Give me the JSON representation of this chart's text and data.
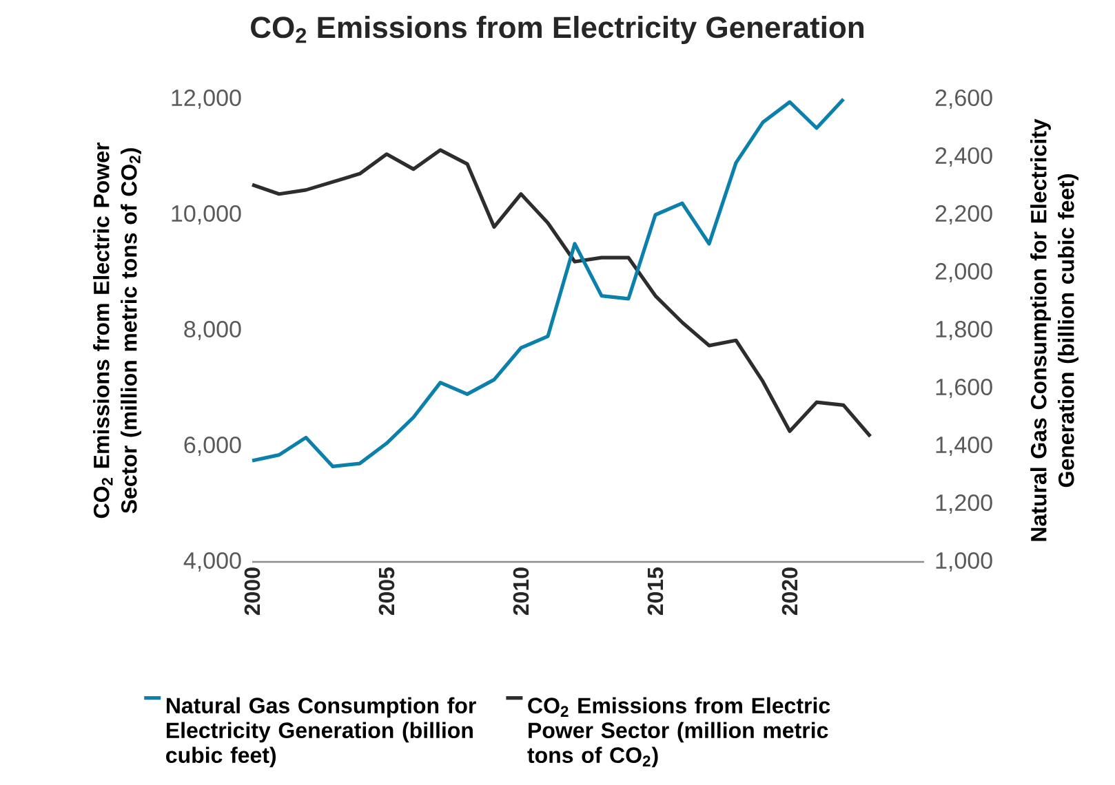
{
  "chart_data": {
    "type": "line",
    "title": "CO$_{2}$ Emissions from Electricity Generation",
    "ylabel": "CO$_{2}$ Emissions from Electric Power Sector (million metric tons of CO$_{2}$)",
    "y2label": "Natural Gas Consumption for Electricity Generation (billion cubic feet)",
    "x": [
      2000,
      2001,
      2002,
      2003,
      2004,
      2005,
      2006,
      2007,
      2008,
      2009,
      2010,
      2011,
      2012,
      2013,
      2014,
      2015,
      2016,
      2017,
      2018,
      2019,
      2020,
      2021,
      2022,
      2023
    ],
    "series": [
      {
        "name": "Natural Gas Consumption for Electricity Generation (billion cubic feet)",
        "color": "#0a80ab",
        "axis": "y2",
        "values": [
          1350,
          1370,
          1430,
          1330,
          1340,
          1410,
          1500,
          1620,
          1580,
          1630,
          1740,
          1780,
          2100,
          1920,
          1910,
          2200,
          2240,
          2100,
          2380,
          2520,
          2590,
          2500,
          2600,
          null
        ]
      },
      {
        "name": "CO$_{2}$ Emissions from Electric Power Sector (million metric tons of CO$_{2}$)",
        "color": "#2d2d2d",
        "values": [
          10520,
          10360,
          10430,
          10570,
          10710,
          11050,
          10790,
          11120,
          10880,
          9790,
          10360,
          9860,
          9190,
          9260,
          9260,
          8600,
          8140,
          7740,
          7830,
          7120,
          6260,
          6760,
          6710,
          6170
        ]
      }
    ],
    "xlim": [
      2000,
      2025
    ],
    "xticks": [
      2000,
      2005,
      2010,
      2015,
      2020
    ],
    "ylim": [
      4000,
      12000
    ],
    "yticks": [
      {
        "value": 4000,
        "label": "4,000"
      },
      {
        "value": 6000,
        "label": "6,000"
      },
      {
        "value": 8000,
        "label": "8,000"
      },
      {
        "value": 10000,
        "label": "10,000"
      },
      {
        "value": 12000,
        "label": "12,000"
      }
    ],
    "y2lim": [
      1000,
      2600
    ],
    "y2ticks": [
      {
        "value": 1000,
        "label": "1,000"
      },
      {
        "value": 1200,
        "label": "1,200"
      },
      {
        "value": 1400,
        "label": "1,400"
      },
      {
        "value": 1600,
        "label": "1,600"
      },
      {
        "value": 1800,
        "label": "1,800"
      },
      {
        "value": 2000,
        "label": "2,000"
      },
      {
        "value": 2200,
        "label": "2,200"
      },
      {
        "value": 2400,
        "label": "2,400"
      },
      {
        "value": 2600,
        "label": "2,600"
      }
    ],
    "legend": "bottom",
    "marker": "none",
    "line_style": "solid"
  }
}
